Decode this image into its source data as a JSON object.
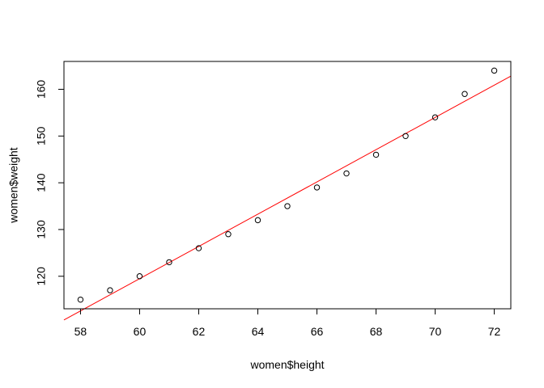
{
  "chart_data": {
    "type": "scatter",
    "title": "",
    "xlabel": "women$height",
    "ylabel": "women$weight",
    "xlim": [
      57.44,
      72.56
    ],
    "ylim": [
      113.04,
      165.96
    ],
    "xticks": [
      58,
      60,
      62,
      64,
      66,
      68,
      70,
      72
    ],
    "yticks": [
      120,
      130,
      140,
      150,
      160
    ],
    "grid": false,
    "legend": "none",
    "point_color": "#000000",
    "series": [
      {
        "x": [
          58,
          59,
          60,
          61,
          62,
          63,
          64,
          65,
          66,
          67,
          68,
          69,
          70,
          71,
          72
        ],
        "y": [
          115,
          117,
          120,
          123,
          126,
          129,
          132,
          135,
          139,
          142,
          146,
          150,
          154,
          159,
          164
        ]
      }
    ],
    "fit_line": {
      "intercept": -87.51667,
      "slope": 3.45,
      "color": "#ff0000"
    }
  }
}
